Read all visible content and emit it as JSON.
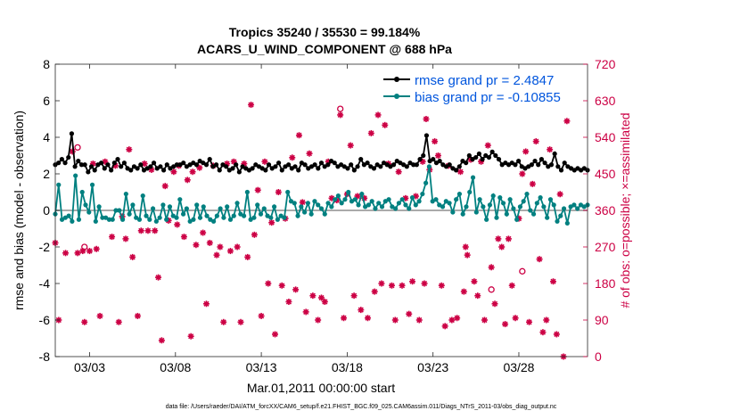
{
  "chart_data": {
    "type": "line",
    "title_line1": "Tropics 35240 / 35530 = 99.184%",
    "title_line2": "ACARS_U_WIND_COMPONENT @ 688 hPa",
    "xlabel": "Mar.01,2011 00:00:00 start",
    "ylabel_left": "rmse and bias (model - observation)",
    "ylabel_right": "# of obs: o=possible; ×=assimilated",
    "footnote": "data file: /Users/raeder/DAI/ATM_forcXX/CAM6_setup/f.e21.FHIST_BGC.f09_025.CAM6assim.011/Diags_NTrS_2011-03/obs_diag_output.nc",
    "x_ticks": [
      "03/03",
      "03/08",
      "03/13",
      "03/18",
      "03/23",
      "03/28"
    ],
    "x_tick_days": [
      3,
      8,
      13,
      18,
      23,
      28
    ],
    "xlim": [
      1,
      32
    ],
    "left_ylim": [
      -8,
      8
    ],
    "left_ticks": [
      "-8",
      "-6",
      "-4",
      "-2",
      "0",
      "2",
      "4",
      "6",
      "8"
    ],
    "right_ylim": [
      0,
      720
    ],
    "right_ticks": [
      "0",
      "90",
      "180",
      "270",
      "360",
      "450",
      "540",
      "630",
      "720"
    ],
    "legend": [
      "rmse grand pr = 2.4847",
      "bias grand pr = -0.10855"
    ],
    "colors": {
      "rmse": "#000000",
      "bias": "#008080",
      "obs": "#cc0044",
      "legend_text": "#0055dd",
      "right_axis": "#cc0044",
      "zero_line": "#aaaaaa"
    },
    "series": [
      {
        "name": "rmse",
        "values": [
          2.5,
          2.6,
          2.8,
          2.6,
          2.9,
          4.2,
          2.4,
          2.7,
          2.5,
          2.5,
          2.1,
          2.4,
          2.2,
          2.5,
          2.6,
          2.3,
          2.5,
          2.2,
          2.6,
          2.8,
          2.4,
          2.6,
          2.3,
          2.2,
          2.4,
          2.3,
          2.5,
          2.2,
          2.3,
          2.4,
          2.6,
          2.3,
          2.4,
          2.2,
          2.5,
          2.3,
          2.4,
          2.5,
          2.5,
          2.6,
          2.4,
          2.5,
          2.6,
          2.5,
          2.7,
          2.6,
          2.5,
          2.8,
          2.4,
          2.5,
          2.2,
          2.5,
          2.4,
          2.2,
          2.3,
          2.5,
          2.1,
          2.4,
          2.3,
          2.2,
          2.3,
          2.5,
          2.4,
          2.3,
          2.2,
          2.5,
          2.3,
          2.4,
          2.6,
          2.2,
          2.4,
          2.5,
          2.3,
          2.4,
          2.2,
          2.6,
          2.5,
          2.3,
          2.4,
          2.5,
          2.3,
          2.6,
          2.4,
          2.5,
          2.7,
          2.6,
          2.4,
          2.5,
          2.4,
          2.3,
          2.5,
          2.2,
          2.4,
          2.8,
          2.5,
          2.6,
          2.4,
          2.3,
          2.5,
          2.4,
          2.6,
          2.5,
          2.4,
          2.5,
          2.7,
          2.6,
          2.5,
          2.4,
          2.6,
          2.5,
          2.5,
          2.8,
          3.0,
          4.1,
          2.7,
          2.8,
          2.6,
          2.7,
          2.5,
          2.4,
          2.5,
          2.3,
          2.2,
          2.4,
          2.7,
          2.6,
          3.0,
          2.8,
          2.9,
          3.1,
          2.8,
          3.0,
          2.9,
          3.2,
          3.0,
          2.8,
          2.5,
          2.6,
          2.5,
          2.6,
          2.5,
          2.7,
          2.4,
          2.3,
          2.4,
          2.5,
          2.7,
          2.5,
          2.8,
          2.6,
          2.4,
          2.5,
          3.1,
          2.4,
          2.2,
          2.6,
          2.4,
          2.3,
          2.2,
          2.3,
          2.2,
          2.3,
          2.2
        ]
      },
      {
        "name": "bias",
        "values": [
          -0.2,
          1.4,
          -0.5,
          -0.4,
          -0.3,
          -0.6,
          1.9,
          -0.5,
          1.0,
          0.3,
          -0.1,
          1.4,
          -0.6,
          0.2,
          -0.4,
          -0.4,
          -0.5,
          -0.5,
          0.0,
          0.0,
          -0.5,
          0.9,
          -0.2,
          0.3,
          -0.4,
          -0.5,
          0.8,
          -0.3,
          -0.5,
          0.1,
          -0.6,
          -0.4,
          0.3,
          -0.5,
          0.2,
          -0.3,
          -0.4,
          0.6,
          -0.2,
          0.1,
          -0.6,
          -0.5,
          0.3,
          -0.4,
          0.2,
          -0.3,
          -0.5,
          -0.6,
          -0.3,
          0.1,
          -0.4,
          0.2,
          -0.5,
          -0.3,
          0.4,
          -0.2,
          -0.3,
          1.0,
          -0.5,
          -0.4,
          0.3,
          -0.2,
          0.1,
          -0.3,
          -0.4,
          0.2,
          -0.5,
          -0.3,
          -0.4,
          1.0,
          0.5,
          0.4,
          -0.3,
          0.2,
          -0.1,
          0.4,
          -0.2,
          0.5,
          0.3,
          0.1,
          -0.2,
          0.4,
          0.2,
          0.6,
          0.8,
          0.4,
          0.6,
          1.0,
          0.5,
          0.6,
          0.3,
          0.9,
          0.2,
          0.3,
          0.5,
          0.1,
          0.4,
          0.2,
          0.5,
          0.6,
          0.2,
          0.1,
          0.4,
          0.6,
          0.3,
          0.1,
          0.7,
          0.3,
          0.5,
          0.9,
          1.5,
          2.4,
          0.5,
          0.6,
          0.3,
          0.2,
          0.5,
          0.4,
          -0.1,
          0.6,
          0.9,
          -0.2,
          0.2,
          1.0,
          1.8,
          -0.1,
          0.6,
          0.2,
          -0.5,
          0.3,
          0.8,
          -0.4,
          0.7,
          0.4,
          -0.2,
          0.6,
          0.1,
          -0.5,
          0.2,
          0.5,
          0.9,
          0.0,
          -0.2,
          0.4,
          0.7,
          0.2,
          -0.4,
          0.6,
          0.3,
          -0.6,
          -0.3,
          0.1,
          -0.7,
          0.2,
          0.3,
          0.1,
          0.3,
          0.2,
          0.3
        ]
      },
      {
        "name": "obs_assimilated",
        "points": [
          [
            1.0,
            280
          ],
          [
            1.2,
            90
          ],
          [
            1.6,
            255
          ],
          [
            2.0,
            505
          ],
          [
            2.3,
            255
          ],
          [
            2.6,
            260
          ],
          [
            2.7,
            85
          ],
          [
            3.0,
            260
          ],
          [
            3.2,
            475
          ],
          [
            3.4,
            265
          ],
          [
            3.6,
            100
          ],
          [
            3.9,
            480
          ],
          [
            4.3,
            295
          ],
          [
            4.5,
            470
          ],
          [
            4.7,
            85
          ],
          [
            4.9,
            345
          ],
          [
            5.1,
            290
          ],
          [
            5.3,
            510
          ],
          [
            5.5,
            245
          ],
          [
            5.8,
            100
          ],
          [
            6.0,
            310
          ],
          [
            6.2,
            475
          ],
          [
            6.4,
            310
          ],
          [
            6.6,
            460
          ],
          [
            6.8,
            310
          ],
          [
            7.0,
            195
          ],
          [
            7.2,
            40
          ],
          [
            7.4,
            420
          ],
          [
            7.6,
            335
          ],
          [
            7.9,
            455
          ],
          [
            8.1,
            325
          ],
          [
            8.2,
            470
          ],
          [
            8.5,
            295
          ],
          [
            8.7,
            435
          ],
          [
            8.9,
            50
          ],
          [
            9.0,
            455
          ],
          [
            9.2,
            275
          ],
          [
            9.4,
            465
          ],
          [
            9.6,
            305
          ],
          [
            9.8,
            130
          ],
          [
            10.0,
            280
          ],
          [
            10.2,
            470
          ],
          [
            10.4,
            250
          ],
          [
            10.6,
            270
          ],
          [
            10.8,
            85
          ],
          [
            11.0,
            475
          ],
          [
            11.2,
            260
          ],
          [
            11.4,
            480
          ],
          [
            11.6,
            270
          ],
          [
            11.8,
            85
          ],
          [
            12.0,
            475
          ],
          [
            12.2,
            245
          ],
          [
            12.4,
            620
          ],
          [
            12.6,
            300
          ],
          [
            12.8,
            410
          ],
          [
            13.0,
            100
          ],
          [
            13.2,
            480
          ],
          [
            13.4,
            180
          ],
          [
            13.6,
            330
          ],
          [
            13.8,
            55
          ],
          [
            14.0,
            405
          ],
          [
            14.2,
            175
          ],
          [
            14.4,
            340
          ],
          [
            14.6,
            135
          ],
          [
            14.8,
            490
          ],
          [
            15.0,
            165
          ],
          [
            15.2,
            545
          ],
          [
            15.4,
            380
          ],
          [
            15.6,
            110
          ],
          [
            15.8,
            500
          ],
          [
            16.0,
            150
          ],
          [
            16.3,
            90
          ],
          [
            16.5,
            145
          ],
          [
            16.7,
            135
          ],
          [
            16.9,
            480
          ],
          [
            17.1,
            390
          ],
          [
            17.4,
            385
          ],
          [
            17.6,
            595
          ],
          [
            17.8,
            95
          ],
          [
            18.0,
            400
          ],
          [
            18.2,
            520
          ],
          [
            18.4,
            150
          ],
          [
            18.6,
            395
          ],
          [
            18.8,
            115
          ],
          [
            19.0,
            390
          ],
          [
            19.2,
            95
          ],
          [
            19.4,
            550
          ],
          [
            19.6,
            160
          ],
          [
            19.8,
            595
          ],
          [
            20.0,
            180
          ],
          [
            20.2,
            570
          ],
          [
            20.4,
            475
          ],
          [
            20.6,
            175
          ],
          [
            20.8,
            90
          ],
          [
            21.0,
            455
          ],
          [
            21.2,
            175
          ],
          [
            21.4,
            390
          ],
          [
            21.6,
            105
          ],
          [
            21.8,
            185
          ],
          [
            22.0,
            395
          ],
          [
            22.2,
            90
          ],
          [
            22.4,
            480
          ],
          [
            22.5,
            180
          ],
          [
            22.6,
            585
          ],
          [
            22.8,
            460
          ],
          [
            23.1,
            530
          ],
          [
            23.3,
            495
          ],
          [
            23.5,
            175
          ],
          [
            23.7,
            75
          ],
          [
            23.9,
            470
          ],
          [
            24.1,
            90
          ],
          [
            24.4,
            95
          ],
          [
            24.6,
            455
          ],
          [
            24.8,
            160
          ],
          [
            24.9,
            270
          ],
          [
            25.0,
            250
          ],
          [
            25.2,
            485
          ],
          [
            25.4,
            185
          ],
          [
            25.6,
            150
          ],
          [
            25.8,
            480
          ],
          [
            26.0,
            90
          ],
          [
            26.2,
            520
          ],
          [
            26.4,
            220
          ],
          [
            26.6,
            130
          ],
          [
            26.8,
            290
          ],
          [
            27.0,
            270
          ],
          [
            27.2,
            80
          ],
          [
            27.4,
            290
          ],
          [
            27.6,
            175
          ],
          [
            27.8,
            95
          ],
          [
            28.0,
            340
          ],
          [
            28.2,
            450
          ],
          [
            28.4,
            505
          ],
          [
            28.6,
            85
          ],
          [
            28.8,
            425
          ],
          [
            29.0,
            530
          ],
          [
            29.2,
            240
          ],
          [
            29.4,
            60
          ],
          [
            29.6,
            90
          ],
          [
            29.8,
            510
          ],
          [
            30.0,
            185
          ],
          [
            30.2,
            55
          ],
          [
            30.4,
            400
          ],
          [
            30.6,
            0
          ],
          [
            30.8,
            580
          ]
        ]
      },
      {
        "name": "obs_possible",
        "points": [
          [
            2.3,
            515
          ],
          [
            2.7,
            270
          ],
          [
            17.6,
            610
          ],
          [
            26.4,
            165
          ],
          [
            28.2,
            210
          ]
        ]
      }
    ]
  }
}
